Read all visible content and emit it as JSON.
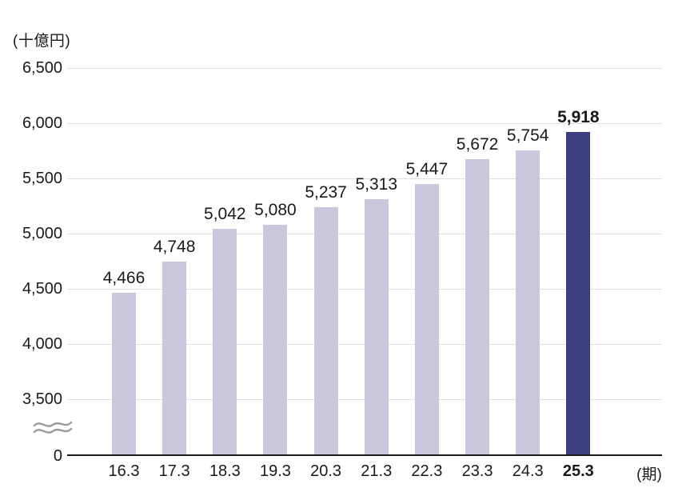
{
  "chart_data": {
    "type": "bar",
    "title": "",
    "ylabel": "(十億円)",
    "xlabel": "(期)",
    "categories": [
      "16.3",
      "17.3",
      "18.3",
      "19.3",
      "20.3",
      "21.3",
      "22.3",
      "23.3",
      "24.3",
      "25.3"
    ],
    "values": [
      4466,
      4748,
      5042,
      5080,
      5237,
      5313,
      5447,
      5672,
      5754,
      5918
    ],
    "value_labels": [
      "4,466",
      "4,748",
      "5,042",
      "5,080",
      "5,237",
      "5,313",
      "5,447",
      "5,672",
      "5,754",
      "5,918"
    ],
    "highlight_index": 9,
    "y_ticks": [
      0,
      3500,
      4000,
      4500,
      5000,
      5500,
      6000,
      6500
    ],
    "y_tick_labels": [
      "0",
      "3,500",
      "4,000",
      "4,500",
      "5,000",
      "5,500",
      "6,000",
      "6,500"
    ],
    "ylim": [
      3500,
      6500
    ],
    "axis_break_between": [
      0,
      3500
    ],
    "grid": "horizontal",
    "legend": "none",
    "colors": {
      "bar": "#cac8dd",
      "bar_highlight": "#3a3e7e",
      "gridline": "#e0e0e0",
      "axis_line": "#1a1a1a",
      "text": "#1a1a1a",
      "break_mark": "#9a9a9a"
    }
  }
}
